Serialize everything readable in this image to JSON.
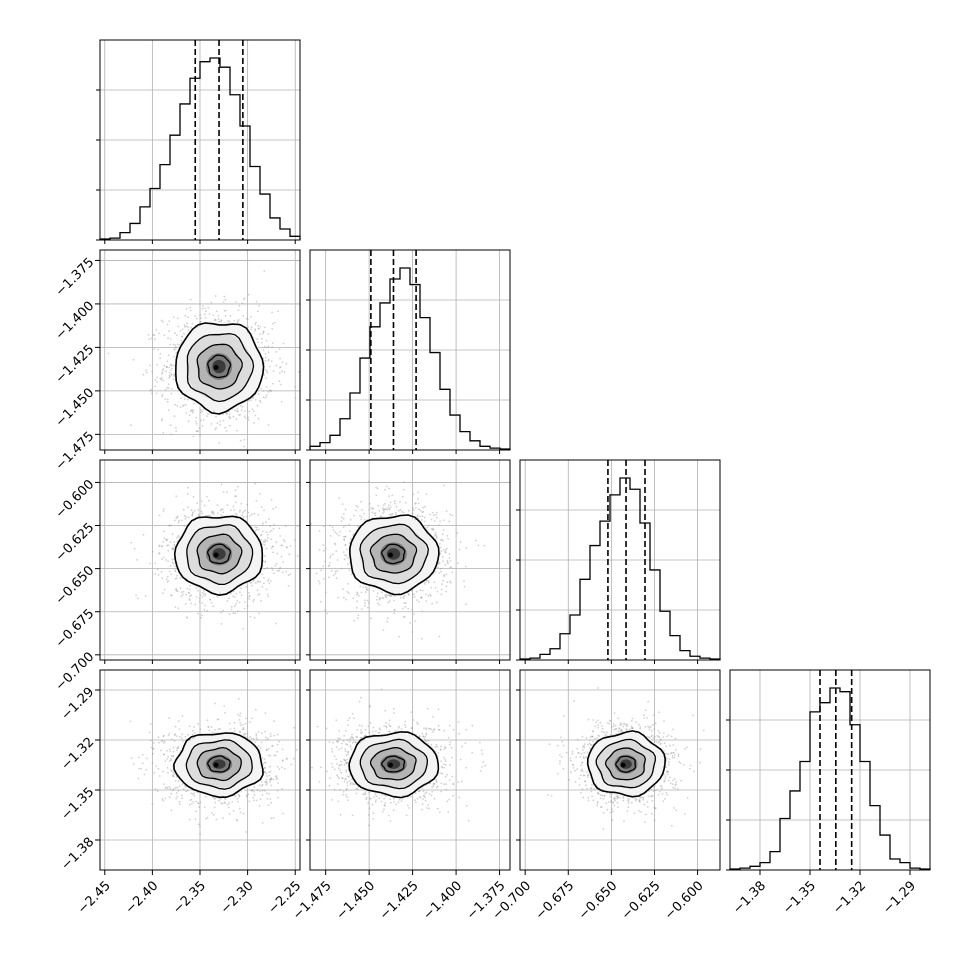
{
  "chart_data": {
    "type": "corner",
    "grid": true,
    "parameters": [
      {
        "index": 0,
        "quantiles": [
          -2.355,
          -2.33,
          -2.305
        ],
        "range": [
          -2.455,
          -2.245
        ],
        "ticks": [
          -2.45,
          -2.4,
          -2.35,
          -2.3,
          -2.25
        ],
        "tick_labels": [
          "−2.45",
          "−2.40",
          "−2.35",
          "−2.30",
          "−2.25"
        ]
      },
      {
        "index": 1,
        "quantiles": [
          -1.449,
          -1.436,
          -1.423
        ],
        "range": [
          -1.484,
          -1.369
        ],
        "ticks": [
          -1.475,
          -1.45,
          -1.425,
          -1.4,
          -1.375
        ],
        "tick_labels": [
          "−1.475",
          "−1.450",
          "−1.425",
          "−1.400",
          "−1.375"
        ]
      },
      {
        "index": 2,
        "quantiles": [
          -0.652,
          -0.6415,
          -0.6305
        ],
        "range": [
          -0.703,
          -0.587
        ],
        "ticks": [
          -0.7,
          -0.675,
          -0.65,
          -0.625,
          -0.6
        ],
        "tick_labels": [
          "−0.700",
          "−0.675",
          "−0.650",
          "−0.625",
          "−0.600"
        ]
      },
      {
        "index": 3,
        "quantiles": [
          -1.344,
          -1.3345,
          -1.325
        ],
        "range": [
          -1.398,
          -1.278
        ],
        "ticks": [
          -1.38,
          -1.35,
          -1.32,
          -1.29
        ],
        "tick_labels": [
          "−1.38",
          "−1.35",
          "−1.32",
          "−1.29"
        ]
      }
    ],
    "histograms": [
      {
        "param": 0,
        "bin_start": -2.455,
        "bin_width": 0.0105,
        "counts": [
          0.005,
          0.01,
          0.04,
          0.09,
          0.18,
          0.28,
          0.41,
          0.57,
          0.74,
          0.88,
          0.97,
          0.99,
          0.94,
          0.79,
          0.62,
          0.4,
          0.25,
          0.12,
          0.06,
          0.02
        ]
      },
      {
        "param": 1,
        "bin_start": -1.484,
        "bin_width": 0.00575,
        "counts": [
          0.02,
          0.04,
          0.08,
          0.17,
          0.31,
          0.5,
          0.67,
          0.8,
          0.93,
          0.99,
          0.9,
          0.72,
          0.53,
          0.33,
          0.19,
          0.1,
          0.05,
          0.02,
          0.01,
          0.005
        ]
      },
      {
        "param": 2,
        "bin_start": -0.703,
        "bin_width": 0.0058,
        "counts": [
          0.005,
          0.01,
          0.03,
          0.06,
          0.14,
          0.24,
          0.43,
          0.61,
          0.74,
          0.88,
          0.97,
          0.91,
          0.73,
          0.48,
          0.26,
          0.13,
          0.05,
          0.02,
          0.01,
          0.005
        ]
      },
      {
        "param": 3,
        "bin_start": -1.398,
        "bin_width": 0.006,
        "counts": [
          0.005,
          0.01,
          0.02,
          0.04,
          0.1,
          0.28,
          0.43,
          0.59,
          0.86,
          0.91,
          0.99,
          0.97,
          0.79,
          0.59,
          0.35,
          0.19,
          0.06,
          0.04,
          0.01,
          0.005
        ]
      }
    ],
    "pairs": [
      {
        "x_param": 0,
        "y_param": 1,
        "mean": [
          -2.33,
          -1.436
        ],
        "sd": [
          0.023,
          0.0128
        ]
      },
      {
        "x_param": 0,
        "y_param": 2,
        "mean": [
          -2.33,
          -0.6415
        ],
        "sd": [
          0.023,
          0.0112
        ]
      },
      {
        "x_param": 1,
        "y_param": 2,
        "mean": [
          -1.436,
          -0.6415
        ],
        "sd": [
          0.0128,
          0.0112
        ]
      },
      {
        "x_param": 0,
        "y_param": 3,
        "mean": [
          -2.33,
          -1.3345
        ],
        "sd": [
          0.023,
          0.0095
        ]
      },
      {
        "x_param": 1,
        "y_param": 3,
        "mean": [
          -1.436,
          -1.3345
        ],
        "sd": [
          0.0128,
          0.0095
        ]
      },
      {
        "x_param": 2,
        "y_param": 3,
        "mean": [
          -0.6415,
          -1.3345
        ],
        "sd": [
          0.0112,
          0.0095
        ]
      }
    ],
    "contour_levels_sigma": [
      0.5,
      1.0,
      1.5,
      2.0
    ]
  }
}
